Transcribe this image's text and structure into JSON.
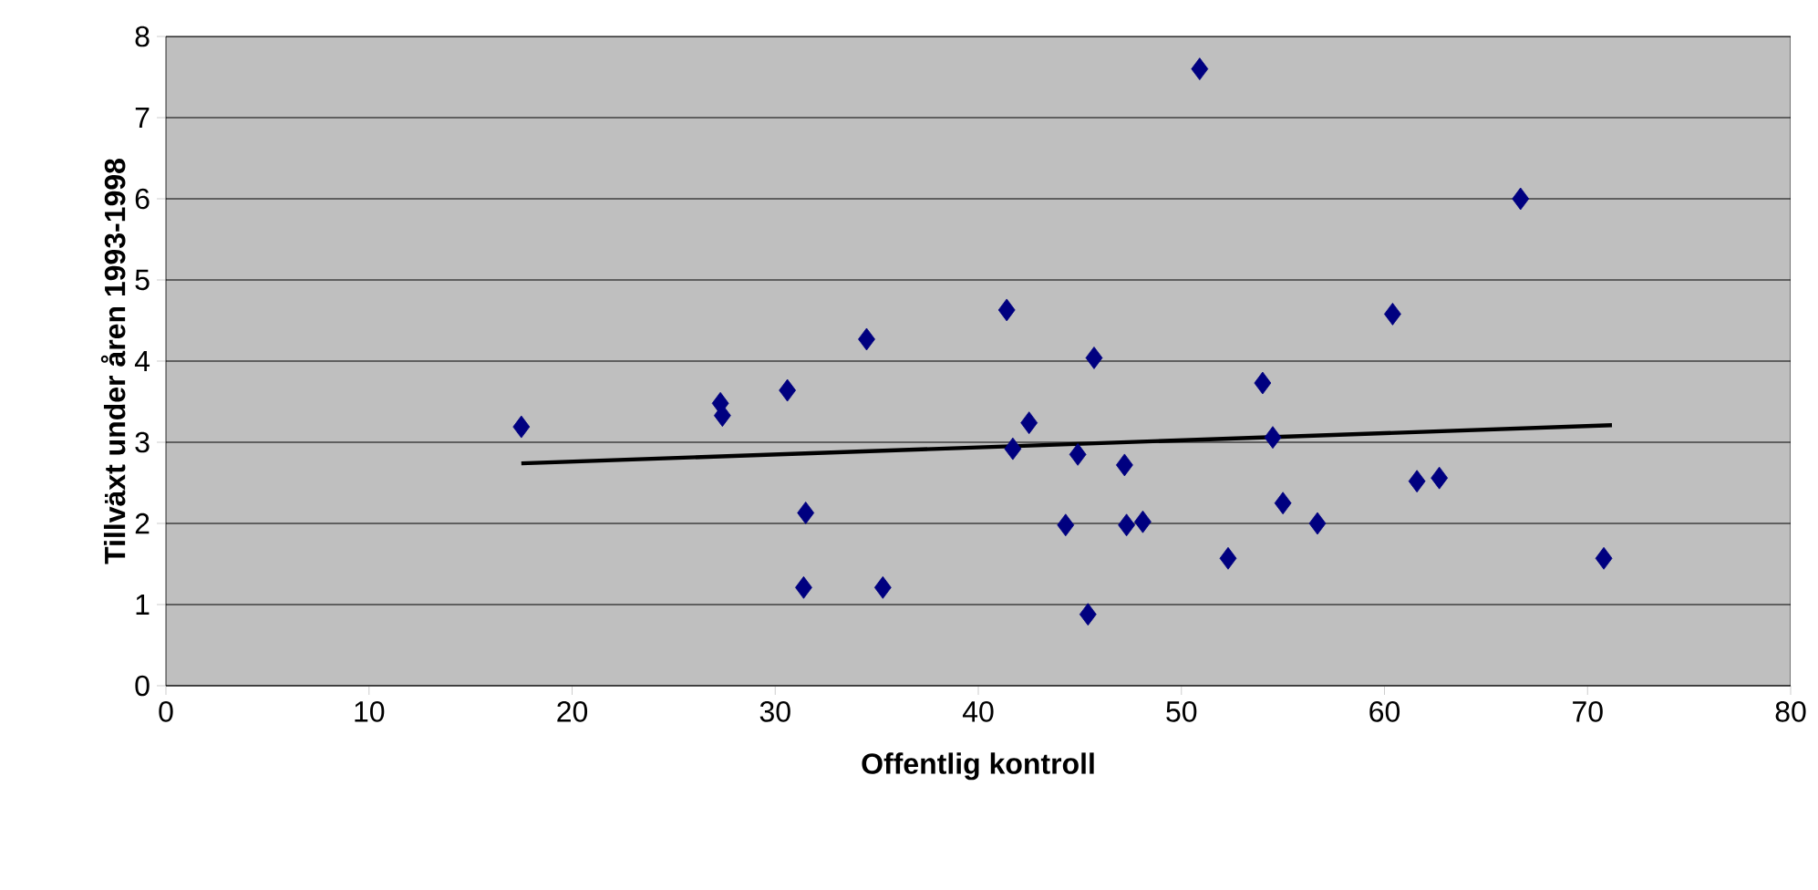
{
  "chart_data": {
    "type": "scatter",
    "xlabel": "Offentlig kontroll",
    "ylabel": "Tillväxt under åren 1993-1998",
    "xlim": [
      0,
      80
    ],
    "ylim": [
      0,
      8
    ],
    "xticks": [
      0,
      10,
      20,
      30,
      40,
      50,
      60,
      70,
      80
    ],
    "yticks": [
      0,
      1,
      2,
      3,
      4,
      5,
      6,
      7,
      8
    ],
    "grid": "y",
    "series": [
      {
        "color": "#000080",
        "marker": "diamond",
        "x": [
          17.5,
          27.3,
          27.4,
          30.6,
          31.5,
          31.4,
          34.5,
          35.3,
          41.4,
          41.7,
          42.5,
          44.3,
          44.9,
          45.7,
          45.4,
          47.2,
          47.3,
          48.1,
          50.9,
          52.3,
          54.0,
          54.5,
          55.0,
          56.7,
          60.4,
          61.6,
          62.7,
          66.7,
          70.8
        ],
        "values": [
          3.19,
          3.48,
          3.33,
          3.64,
          2.13,
          1.21,
          4.27,
          1.21,
          4.63,
          2.92,
          3.24,
          1.98,
          2.85,
          4.04,
          0.88,
          2.72,
          1.98,
          2.02,
          7.6,
          1.57,
          3.73,
          3.06,
          2.25,
          2.0,
          4.58,
          2.52,
          2.56,
          6.0,
          1.57
        ]
      },
      {
        "type": "line",
        "color": "#000000",
        "x": [
          17.5,
          71.2
        ],
        "values": [
          2.74,
          3.21
        ]
      }
    ]
  }
}
